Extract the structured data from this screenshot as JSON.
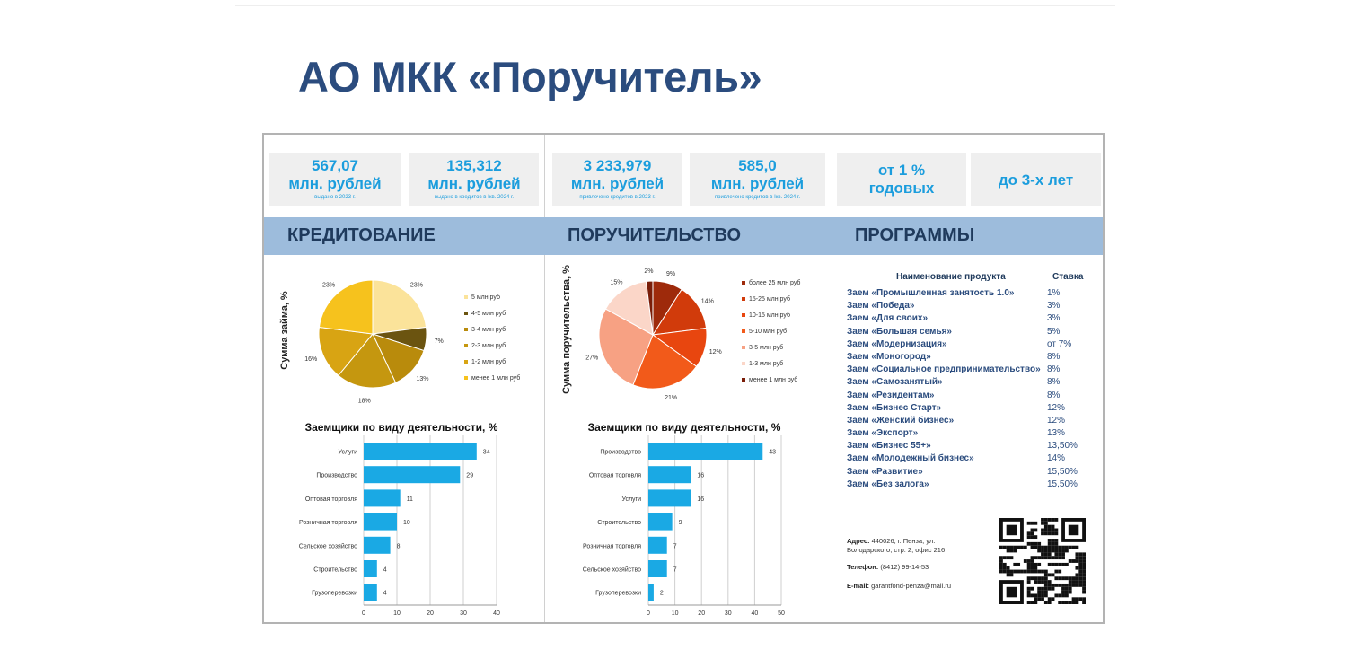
{
  "title": "АО МКК «Поручитель»",
  "stats": [
    {
      "value": "567,07",
      "unit": "млн. рублей",
      "note": "выдано в 2023 г."
    },
    {
      "value": "135,312",
      "unit": "млн. рублей",
      "note": "выдано в кредитов в Iкв. 2024 г."
    },
    {
      "value": "3 233,979",
      "unit": "млн. рублей",
      "note": "привлечено кредитов в 2023 г."
    },
    {
      "value": "585,0",
      "unit": "млн. рублей",
      "note": "привлечено кредитов в Iкв. 2024 г."
    },
    {
      "value": "от 1 %",
      "unit": "годовых",
      "note": ""
    },
    {
      "value": "до 3-х лет",
      "unit": "",
      "note": ""
    }
  ],
  "sections": {
    "credit": "КРЕДИТОВАНИЕ",
    "guarantee": "ПОРУЧИТЕЛЬСТВО",
    "programs": "ПРОГРАММЫ"
  },
  "colors": {
    "title": "#2b4c7e",
    "stat_text": "#1b9ddd",
    "banner": "#9dbcdc",
    "bar": "#1aa9e4"
  },
  "chart_data": [
    {
      "type": "pie",
      "ylabel": "Сумма    займа, %",
      "categories": [
        "5 млн руб",
        "4-5 млн руб",
        "3-4 млн руб",
        "2-3 млн руб",
        "1-2 млн руб",
        "менее 1 млн руб"
      ],
      "values": [
        23,
        7,
        13,
        18,
        16,
        23
      ],
      "value_labels": [
        "23%",
        "7%",
        "13%",
        "18%",
        "16%",
        "23%"
      ],
      "colors": [
        "#fbe39a",
        "#6b5410",
        "#b98b0c",
        "#c5970f",
        "#d8a413",
        "#f6c21d"
      ],
      "legend": "right"
    },
    {
      "type": "pie",
      "ylabel": "Сумма поручительства, %",
      "categories": [
        "более 25 млн руб",
        "15-25 млн руб",
        "10-15 млн руб",
        "5-10 млн руб",
        "3-5 млн руб",
        "1-3 млн руб",
        "менее 1 млн руб"
      ],
      "values": [
        9,
        14,
        12,
        21,
        27,
        15,
        2
      ],
      "value_labels": [
        "9%",
        "14%",
        "12%",
        "21%",
        "27%",
        "15%",
        "2%"
      ],
      "colors": [
        "#9e2a0b",
        "#d13b0b",
        "#e8460f",
        "#f25a1a",
        "#f7a183",
        "#fbd6c8",
        "#7a1d08"
      ],
      "legend": "right"
    },
    {
      "type": "bar",
      "orientation": "horizontal",
      "title": "Заемщики по виду деятельности, %",
      "categories": [
        "Услуги",
        "Производство",
        "Оптовая торговля",
        "Розничная торговля",
        "Сельское хозяйство",
        "Строительство",
        "Грузоперевозки"
      ],
      "values": [
        34,
        29,
        11,
        10,
        8,
        4,
        4
      ],
      "xlim": [
        0,
        40
      ],
      "ticks": [
        0,
        10,
        20,
        30,
        40
      ],
      "grid": true
    },
    {
      "type": "bar",
      "orientation": "horizontal",
      "title": "Заемщики по виду деятельности, %",
      "categories": [
        "Производство",
        "Оптовая торговля",
        "Услуги",
        "Строительство",
        "Розничная торговля",
        "Сельское хозяйство",
        "Грузоперевозки"
      ],
      "values": [
        43,
        16,
        16,
        9,
        7,
        7,
        2
      ],
      "xlim": [
        0,
        50
      ],
      "ticks": [
        0,
        10,
        20,
        30,
        40,
        50
      ],
      "grid": true
    }
  ],
  "programs": {
    "header_name": "Наименование продукта",
    "header_rate": "Ставка",
    "items": [
      {
        "name": "Заем «Промышленная занятость 1.0»",
        "rate": "1%"
      },
      {
        "name": "Заем «Победа»",
        "rate": "3%"
      },
      {
        "name": "Заем «Для своих»",
        "rate": "3%"
      },
      {
        "name": "Заем «Большая семья»",
        "rate": "5%"
      },
      {
        "name": "Заем «Модернизация»",
        "rate": "от 7%"
      },
      {
        "name": "Заем «Моногород»",
        "rate": "8%"
      },
      {
        "name": "Заем  «Социальное предпринимательство»",
        "rate": "8%"
      },
      {
        "name": "Заем  «Самозанятый»",
        "rate": "8%"
      },
      {
        "name": "Заем «Резидентам»",
        "rate": "8%"
      },
      {
        "name": "Заем «Бизнес Старт»",
        "rate": "12%"
      },
      {
        "name": "Заем «Женский бизнес»",
        "rate": "12%"
      },
      {
        "name": "Заем  «Экспорт»",
        "rate": "13%"
      },
      {
        "name": "Заем  «Бизнес 55+»",
        "rate": "13,50%"
      },
      {
        "name": "Заем  «Молодежный бизнес»",
        "rate": "14%"
      },
      {
        "name": "Заем «Развитие»",
        "rate": "15,50%"
      },
      {
        "name": "Заем «Без залога»",
        "rate": "15,50%"
      }
    ]
  },
  "contacts": {
    "address_label": "Адрес:",
    "address": "440026, г. Пенза, ул. Володарского, стр. 2, офис 216",
    "phone_label": "Телефон:",
    "phone": "(8412) 99-14-53",
    "email_label": "E-mail:",
    "email": "garantfond-penza@mail.ru"
  }
}
